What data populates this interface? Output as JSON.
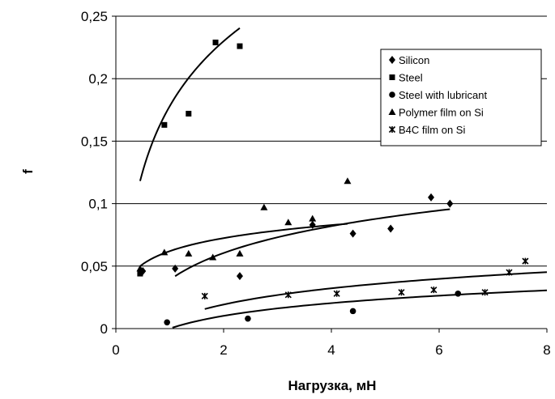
{
  "chart_data": {
    "type": "scatter",
    "title": "",
    "xlabel": "Нагрузка, мН",
    "ylabel": "f",
    "xlim": [
      0,
      8
    ],
    "ylim": [
      0,
      0.25
    ],
    "x_ticks": [
      "0",
      "2",
      "4",
      "6",
      "8"
    ],
    "y_ticks": [
      "0",
      "0,05",
      "0,1",
      "0,15",
      "0,2",
      "0,25"
    ],
    "grid": "horizontal",
    "legend_position": "top-right",
    "series": [
      {
        "name": "Silicon",
        "marker": "diamond",
        "points": [
          [
            0.5,
            0.046
          ],
          [
            1.1,
            0.048
          ],
          [
            2.3,
            0.042
          ],
          [
            3.65,
            0.083
          ],
          [
            4.4,
            0.076
          ],
          [
            5.1,
            0.08
          ],
          [
            5.85,
            0.105
          ],
          [
            6.2,
            0.1
          ]
        ],
        "trend": {
          "x_from": 1.1,
          "x_to": 6.2,
          "a": 0.039,
          "b": 0.031
        }
      },
      {
        "name": "Steel",
        "marker": "square",
        "points": [
          [
            0.45,
            0.044
          ],
          [
            0.9,
            0.163
          ],
          [
            1.35,
            0.172
          ],
          [
            1.85,
            0.229
          ],
          [
            2.3,
            0.226
          ]
        ],
        "trend": {
          "x_from": 0.45,
          "x_to": 2.3,
          "a": 0.178,
          "b": 0.075
        }
      },
      {
        "name": "Steel with lubricant",
        "marker": "circle",
        "points": [
          [
            0.95,
            0.005
          ],
          [
            2.45,
            0.008
          ],
          [
            4.4,
            0.014
          ],
          [
            6.35,
            0.028
          ]
        ],
        "trend": {
          "x_from": 1.05,
          "x_to": 8.0,
          "a": 0.0,
          "b": 0.0147
        }
      },
      {
        "name": "Polymer film on Si",
        "marker": "triangle",
        "points": [
          [
            0.45,
            0.048
          ],
          [
            0.9,
            0.061
          ],
          [
            1.35,
            0.06
          ],
          [
            1.8,
            0.057
          ],
          [
            2.3,
            0.06
          ],
          [
            2.75,
            0.097
          ],
          [
            3.2,
            0.085
          ],
          [
            3.65,
            0.088
          ],
          [
            4.3,
            0.118
          ]
        ],
        "trend": {
          "x_from": 0.45,
          "x_to": 4.3,
          "a": 0.062,
          "b": 0.015
        }
      },
      {
        "name": "B4C film on Si",
        "marker": "star",
        "points": [
          [
            1.65,
            0.026
          ],
          [
            3.2,
            0.027
          ],
          [
            4.1,
            0.028
          ],
          [
            5.3,
            0.029
          ],
          [
            5.9,
            0.031
          ],
          [
            6.85,
            0.029
          ],
          [
            7.3,
            0.045
          ],
          [
            7.6,
            0.054
          ]
        ],
        "trend": {
          "x_from": 1.65,
          "x_to": 8.0,
          "a": 0.0063,
          "b": 0.0187
        }
      }
    ]
  }
}
